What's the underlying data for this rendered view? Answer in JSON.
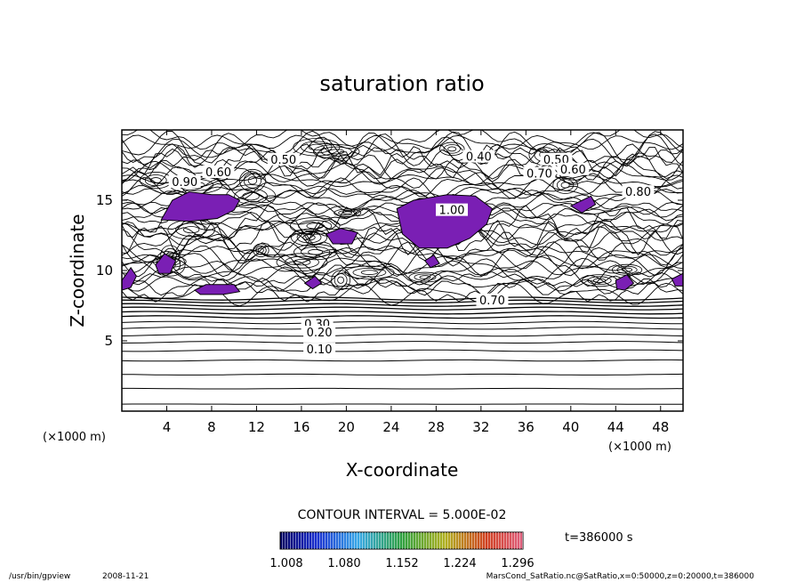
{
  "chart_data": {
    "type": "heatmap",
    "title": "saturation ratio",
    "xlabel": "X-coordinate",
    "ylabel": "Z-coordinate",
    "x_unit_left": "(×1000 m)",
    "x_unit_right": "(×1000 m)",
    "xlim": [
      0,
      50
    ],
    "ylim": [
      0,
      20
    ],
    "x_ticks": [
      4,
      8,
      12,
      16,
      20,
      24,
      28,
      32,
      36,
      40,
      44,
      48
    ],
    "y_ticks": [
      5,
      10,
      15
    ],
    "contour_interval_text": "CONTOUR INTERVAL = 5.000E-02",
    "time_text": "t=386000 s",
    "colorbar_ticks": [
      "1.008",
      "1.080",
      "1.152",
      "1.224",
      "1.296"
    ],
    "shaded_color": "#7a1fb4",
    "contour_labels": [
      {
        "text": "0.50",
        "x": 14.4,
        "z": 17.8
      },
      {
        "text": "0.40",
        "x": 31.8,
        "z": 18.0
      },
      {
        "text": "0.50",
        "x": 38.7,
        "z": 17.8
      },
      {
        "text": "0.60",
        "x": 40.2,
        "z": 17.1
      },
      {
        "text": "0.70",
        "x": 37.2,
        "z": 16.8
      },
      {
        "text": "0.90",
        "x": 5.6,
        "z": 16.2
      },
      {
        "text": "0.60",
        "x": 8.6,
        "z": 16.9
      },
      {
        "text": "0.80",
        "x": 46.0,
        "z": 15.5
      },
      {
        "text": "1.00",
        "x": 29.4,
        "z": 14.2
      },
      {
        "text": "0.70",
        "x": 33.0,
        "z": 7.8
      },
      {
        "text": "0.30",
        "x": 17.4,
        "z": 6.1
      },
      {
        "text": "0.20",
        "x": 17.6,
        "z": 5.5
      },
      {
        "text": "0.10",
        "x": 17.6,
        "z": 4.3
      }
    ],
    "shaded_regions_x_z": [
      [
        [
          3.5,
          13.6
        ],
        [
          4.5,
          15.0
        ],
        [
          6.0,
          15.6
        ],
        [
          8.0,
          15.4
        ],
        [
          9.5,
          15.4
        ],
        [
          10.5,
          15.0
        ],
        [
          10.0,
          14.3
        ],
        [
          8.5,
          13.7
        ],
        [
          6.0,
          13.5
        ]
      ],
      [
        [
          24.5,
          14.4
        ],
        [
          26.0,
          15.0
        ],
        [
          29.0,
          15.4
        ],
        [
          31.5,
          15.3
        ],
        [
          33.0,
          14.4
        ],
        [
          32.5,
          13.3
        ],
        [
          31.0,
          12.3
        ],
        [
          29.0,
          11.6
        ],
        [
          26.5,
          11.6
        ],
        [
          25.0,
          12.6
        ]
      ],
      [
        [
          18.2,
          12.6
        ],
        [
          19.5,
          13.0
        ],
        [
          21.0,
          12.7
        ],
        [
          20.5,
          11.9
        ],
        [
          18.8,
          11.9
        ]
      ],
      [
        [
          3.0,
          10.4
        ],
        [
          3.8,
          11.2
        ],
        [
          4.8,
          10.7
        ],
        [
          4.3,
          9.8
        ],
        [
          3.3,
          9.8
        ]
      ],
      [
        [
          0.0,
          9.3
        ],
        [
          0.8,
          10.2
        ],
        [
          1.3,
          9.6
        ],
        [
          0.8,
          8.8
        ],
        [
          0.0,
          8.6
        ]
      ],
      [
        [
          6.5,
          8.6
        ],
        [
          7.5,
          9.0
        ],
        [
          10.0,
          9.0
        ],
        [
          10.5,
          8.5
        ],
        [
          9.0,
          8.3
        ],
        [
          7.0,
          8.3
        ]
      ],
      [
        [
          16.3,
          9.1
        ],
        [
          17.2,
          9.6
        ],
        [
          17.8,
          9.1
        ],
        [
          17.0,
          8.7
        ]
      ],
      [
        [
          44.0,
          9.3
        ],
        [
          45.0,
          9.7
        ],
        [
          45.6,
          9.1
        ],
        [
          44.8,
          8.6
        ],
        [
          44.1,
          8.7
        ]
      ],
      [
        [
          49.0,
          9.4
        ],
        [
          50.0,
          9.8
        ],
        [
          50.0,
          8.9
        ],
        [
          49.3,
          8.9
        ]
      ],
      [
        [
          40.0,
          14.6
        ],
        [
          41.8,
          15.3
        ],
        [
          42.2,
          14.7
        ],
        [
          41.0,
          14.1
        ]
      ],
      [
        [
          27.0,
          10.7
        ],
        [
          27.8,
          11.1
        ],
        [
          28.3,
          10.5
        ],
        [
          27.5,
          10.2
        ]
      ]
    ]
  },
  "footer": {
    "program": "/usr/bin/gpview",
    "date": "2008-11-21",
    "source": "MarsCond_SatRatio.nc@SatRatio,x=0:50000,z=0:20000,t=386000"
  }
}
